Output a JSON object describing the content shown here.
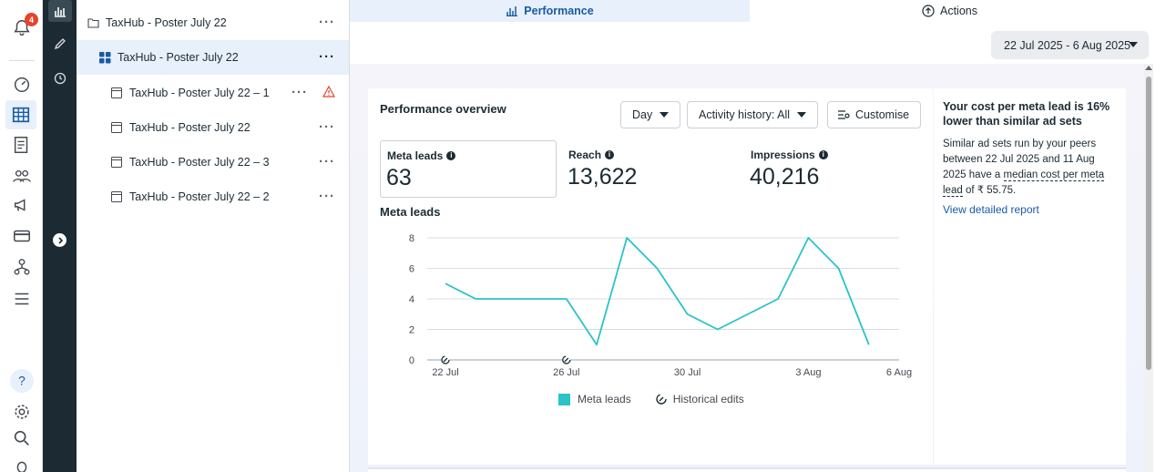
{
  "notifications": {
    "count": "4"
  },
  "tree": {
    "items": [
      {
        "label": "TaxHub - Poster July 22",
        "type": "campaign"
      },
      {
        "label": "TaxHub - Poster July 22",
        "type": "adset"
      },
      {
        "label": "TaxHub - Poster July 22 – 1",
        "type": "ad",
        "warning": true
      },
      {
        "label": "TaxHub - Poster July 22",
        "type": "ad"
      },
      {
        "label": "TaxHub - Poster July 22 – 3",
        "type": "ad"
      },
      {
        "label": "TaxHub - Poster July 22 – 2",
        "type": "ad"
      }
    ]
  },
  "tabs": {
    "performance": "Performance",
    "actions": "Actions"
  },
  "date_range": "22 Jul 2025 - 6 Aug 2025",
  "overview": {
    "title": "Performance overview",
    "day_button": "Day",
    "activity_button": "Activity history: All",
    "customise_button": "Customise",
    "metrics": [
      {
        "label": "Meta leads",
        "value": "63"
      },
      {
        "label": "Reach",
        "value": "13,622"
      },
      {
        "label": "Impressions",
        "value": "40,216"
      }
    ],
    "chart_title": "Meta leads",
    "legend_series": "Meta leads",
    "legend_edits": "Historical edits"
  },
  "insight": {
    "heading": "Your cost per meta lead is 16% lower than similar ad sets",
    "text_1": "Similar ad sets run by your peers between 22 Jul 2025 and 11 Aug 2025 have a ",
    "text_dotted": "median cost per meta lead",
    "text_2": " of ₹ 55.75.",
    "link": "View detailed report"
  },
  "colors": {
    "series": "#2ac3c8",
    "accent": "#1a5aa6",
    "badge": "#e4442b"
  },
  "chart_data": {
    "type": "line",
    "title": "Meta leads",
    "x": [
      "22 Jul",
      "23 Jul",
      "24 Jul",
      "25 Jul",
      "26 Jul",
      "27 Jul",
      "28 Jul",
      "29 Jul",
      "30 Jul",
      "31 Jul",
      "1 Aug",
      "2 Aug",
      "3 Aug",
      "4 Aug",
      "5 Aug"
    ],
    "series": [
      {
        "name": "Meta leads",
        "values": [
          5,
          4,
          4,
          4,
          4,
          1,
          8,
          6,
          3,
          2,
          3,
          4,
          8,
          6,
          1
        ]
      }
    ],
    "x_ticks": [
      "22 Jul",
      "26 Jul",
      "30 Jul",
      "3 Aug",
      "6 Aug"
    ],
    "y_ticks": [
      "0",
      "2",
      "4",
      "6",
      "8"
    ],
    "ylim": [
      0,
      8
    ],
    "historical_edits_at": [
      "22 Jul",
      "26 Jul"
    ],
    "grid": true,
    "legend": "bottom-center"
  }
}
